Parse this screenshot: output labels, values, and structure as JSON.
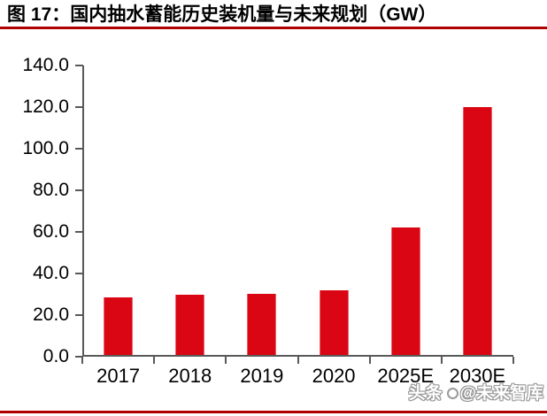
{
  "page": {
    "title": "图 17：国内抽水蓄能历史装机量与未来规划（GW）"
  },
  "watermark": {
    "prefix": "头条",
    "handle": "@未来智库"
  },
  "chart_data": {
    "type": "bar",
    "figure_label": "图 17",
    "title": "国内抽水蓄能历史装机量与未来规划（GW）",
    "unit": "GW",
    "categories": [
      "2017",
      "2018",
      "2019",
      "2020",
      "2025E",
      "2030E"
    ],
    "values": [
      28.7,
      30.0,
      30.3,
      31.8,
      62.0,
      120.0
    ],
    "ylim": [
      0,
      140
    ],
    "ytick_step": 20,
    "ytick_labels": [
      "0.0",
      "20.0",
      "40.0",
      "60.0",
      "80.0",
      "100.0",
      "120.0",
      "140.0"
    ],
    "xlabel": "",
    "ylabel": "",
    "grid": false,
    "legend": false,
    "bar_color": "#DA0613",
    "axis_color": "#595959",
    "rule_color": "#B00000"
  }
}
